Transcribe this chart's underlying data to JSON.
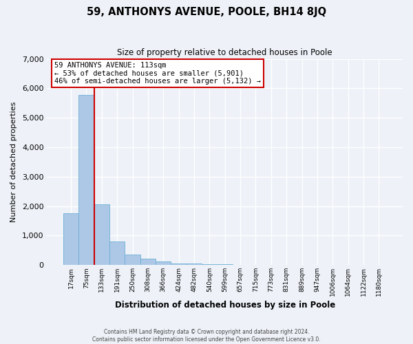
{
  "title": "59, ANTHONYS AVENUE, POOLE, BH14 8JQ",
  "subtitle": "Size of property relative to detached houses in Poole",
  "xlabel": "Distribution of detached houses by size in Poole",
  "ylabel": "Number of detached properties",
  "bar_labels": [
    "17sqm",
    "75sqm",
    "133sqm",
    "191sqm",
    "250sqm",
    "308sqm",
    "366sqm",
    "424sqm",
    "482sqm",
    "540sqm",
    "599sqm",
    "657sqm",
    "715sqm",
    "773sqm",
    "831sqm",
    "889sqm",
    "947sqm",
    "1006sqm",
    "1064sqm",
    "1122sqm",
    "1180sqm"
  ],
  "bar_values": [
    1750,
    5780,
    2060,
    790,
    360,
    215,
    110,
    60,
    40,
    30,
    20,
    0,
    0,
    0,
    0,
    0,
    0,
    0,
    0,
    0,
    0
  ],
  "bar_color": "#adc8e6",
  "bar_edge_color": "#6baed6",
  "property_line_color": "#cc0000",
  "annotation_title": "59 ANTHONYS AVENUE: 113sqm",
  "annotation_line1": "← 53% of detached houses are smaller (5,901)",
  "annotation_line2": "46% of semi-detached houses are larger (5,132) →",
  "annotation_box_color": "#ffffff",
  "annotation_box_edge": "#cc0000",
  "ylim": [
    0,
    7000
  ],
  "yticks": [
    0,
    1000,
    2000,
    3000,
    4000,
    5000,
    6000,
    7000
  ],
  "footer1": "Contains HM Land Registry data © Crown copyright and database right 2024.",
  "footer2": "Contains public sector information licensed under the Open Government Licence v3.0.",
  "bg_color": "#eef2f8",
  "plot_bg_color": "#eef2f8"
}
